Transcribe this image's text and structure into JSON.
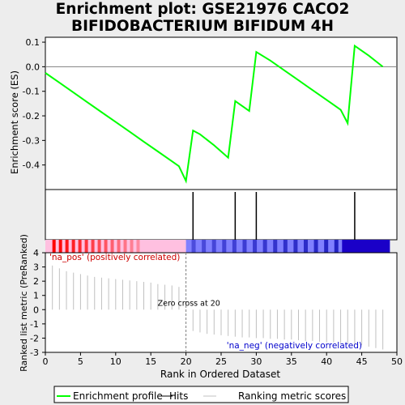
{
  "chart_data": {
    "type": "line",
    "title_lines": [
      "Enrichment plot: GSE21976 CACO2",
      "BIFIDOBACTERIUM BIFIDUM 4H"
    ],
    "es_panel": {
      "ylabel": "Enrichment score (ES)",
      "ylim": [
        -0.5,
        0.12
      ],
      "yticks": [
        0.1,
        0.0,
        -0.1,
        -0.2,
        -0.3,
        -0.4
      ],
      "ytick_labels": [
        "0.1",
        "0.0",
        "-0.1",
        "-0.2",
        "-0.3",
        "-0.4"
      ],
      "series": [
        {
          "color": "#00ff00",
          "x": [
            0,
            2,
            4,
            6,
            8,
            10,
            12,
            14,
            16,
            18,
            19,
            20,
            21,
            22,
            24,
            26,
            27,
            29,
            30,
            32,
            34,
            36,
            38,
            40,
            42,
            43,
            44,
            46,
            48
          ],
          "y": [
            -0.025,
            -0.065,
            -0.105,
            -0.145,
            -0.185,
            -0.225,
            -0.265,
            -0.305,
            -0.345,
            -0.385,
            -0.405,
            -0.465,
            -0.26,
            -0.275,
            -0.32,
            -0.37,
            -0.14,
            -0.18,
            0.06,
            0.025,
            -0.015,
            -0.055,
            -0.095,
            -0.135,
            -0.175,
            -0.23,
            0.085,
            0.045,
            0.0
          ]
        }
      ]
    },
    "hits": [
      21,
      27,
      30,
      44
    ],
    "rank_panel": {
      "ylabel": "Ranked list metric (PreRanked)",
      "xlabel": "Rank in Ordered Dataset",
      "xlim": [
        0,
        50
      ],
      "ylim": [
        -3,
        4
      ],
      "xticks": [
        0,
        5,
        10,
        15,
        20,
        25,
        30,
        35,
        40,
        45,
        50
      ],
      "yticks": [
        4,
        3,
        2,
        1,
        0,
        -1,
        -2,
        -3
      ],
      "x": [
        1,
        2,
        3,
        4,
        5,
        6,
        7,
        8,
        9,
        10,
        11,
        12,
        13,
        14,
        15,
        16,
        17,
        18,
        19,
        20,
        21,
        22,
        23,
        24,
        25,
        26,
        27,
        28,
        29,
        30,
        31,
        32,
        33,
        34,
        35,
        36,
        37,
        38,
        39,
        40,
        41,
        42,
        43,
        44,
        45,
        46,
        47,
        48
      ],
      "values": [
        3.1,
        2.9,
        2.7,
        2.6,
        2.5,
        2.4,
        2.3,
        2.25,
        2.2,
        2.15,
        2.1,
        2.05,
        2.0,
        1.95,
        1.9,
        1.8,
        1.75,
        1.7,
        1.6,
        0,
        -1.5,
        -1.6,
        -1.7,
        -1.75,
        -1.8,
        -1.85,
        -1.9,
        -1.95,
        -1.95,
        -2.0,
        -2.0,
        -2.05,
        -2.05,
        -2.1,
        -2.1,
        -2.15,
        -2.2,
        -2.2,
        -2.25,
        -2.3,
        -2.3,
        -2.35,
        -2.4,
        -2.45,
        -2.5,
        -2.6,
        -2.7,
        -2.8
      ],
      "pos_label": "'na_pos' (positively correlated)",
      "neg_label": "'na_neg' (negatively correlated)",
      "zero_cross_label": "Zero cross at 20",
      "zero_cross_x": 20
    },
    "legend": {
      "items": [
        {
          "label": "Enrichment profile",
          "color": "#00ff00",
          "style": "thick-line"
        },
        {
          "label": "Hits",
          "color": "#000000",
          "style": "line"
        },
        {
          "label": "Ranking metric scores",
          "color": "#c0c0c0",
          "style": "thin-line"
        }
      ]
    },
    "colors": {
      "profile": "#00ff00",
      "pos_label": "#cc0000",
      "neg_label": "#0000cc",
      "bar_pos": "#ff0000",
      "bar_neg": "#0000ff",
      "bar_light_pos": "#ffc0e0",
      "bar_light_neg": "#8080ff"
    }
  }
}
